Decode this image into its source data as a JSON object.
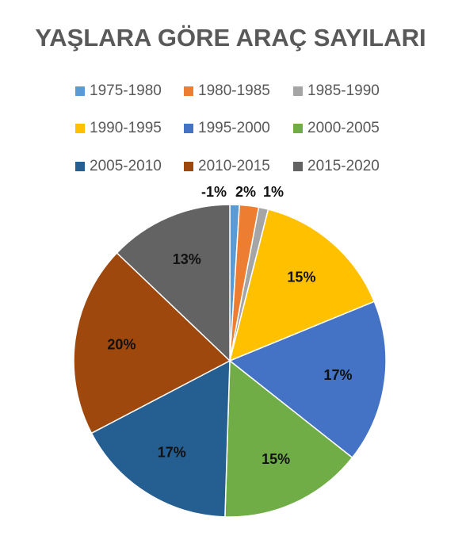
{
  "chart_data": {
    "type": "pie",
    "title": "YAŞLARA GÖRE  ARAÇ SAYILARI",
    "categories": [
      "1975-1980",
      "1980-1985",
      "1985-1990",
      "1990-1995",
      "1995-2000",
      "2000-2005",
      "2005-2010",
      "2010-2015",
      "2015-2020"
    ],
    "values": [
      -1,
      2,
      1,
      15,
      17,
      15,
      17,
      20,
      13
    ],
    "value_labels": [
      "-1%",
      "2%",
      "1%",
      "15%",
      "17%",
      "15%",
      "17%",
      "20%",
      "13%"
    ],
    "colors": [
      "#5b9bd5",
      "#ed7d31",
      "#a5a5a5",
      "#ffc000",
      "#4472c4",
      "#70ad47",
      "#255e91",
      "#9e480e",
      "#636363"
    ],
    "legend": "top"
  }
}
